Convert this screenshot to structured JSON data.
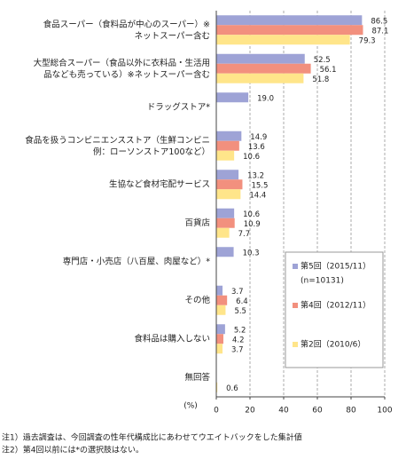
{
  "chart_data": {
    "type": "bar",
    "orientation": "horizontal",
    "categories": [
      "食品スーパー（食料品が中心のスーパー）※\nネットスーパー含む",
      "大型総合スーパー（食品以外に衣料品・生活用\n品なども売っている）※ネットスーパー含む",
      "ドラッグストア*",
      "食品を扱うコンビニエンスストア（生鮮コンビニ\n例：ローソンストア100など）",
      "生協など食材宅配サービス",
      "百貨店",
      "専門店・小売店（八百屋、肉屋など）*",
      "その他",
      "食料品は購入しない",
      "無回答"
    ],
    "series": [
      {
        "name": "第5回（2015/11）",
        "name_note": "(n=10131)",
        "color": "#9ea3d6",
        "values": [
          86.5,
          52.5,
          19.0,
          14.9,
          13.2,
          10.6,
          10.3,
          3.7,
          5.2,
          null
        ],
        "value_labels": [
          "86.5",
          "52.5",
          "19.0",
          "14.9",
          "13.2",
          "10.6",
          "10.3",
          "3.7",
          "5.2",
          null
        ]
      },
      {
        "name": "第4回（2012/11）",
        "color": "#f2907e",
        "values": [
          87.1,
          56.1,
          null,
          13.6,
          15.5,
          10.9,
          null,
          6.4,
          4.2,
          null
        ],
        "value_labels": [
          "87.1",
          "56.1",
          null,
          "13.6",
          "15.5",
          "10.9",
          null,
          "6.4",
          "4.2",
          null
        ]
      },
      {
        "name": "第2回（2010/6）",
        "color": "#ffe58a",
        "values": [
          79.3,
          51.8,
          null,
          10.6,
          14.4,
          7.7,
          null,
          5.5,
          3.7,
          0.6
        ],
        "value_labels": [
          "79.3",
          "51.8",
          null,
          "10.6",
          "14.4",
          "7.7",
          null,
          "5.5",
          "3.7",
          "0.6"
        ]
      }
    ],
    "x_axis_label": "(%)",
    "xlim": [
      0,
      100
    ],
    "xticks": [
      0,
      20,
      40,
      60,
      80,
      100
    ],
    "grid": true,
    "notes": [
      "注1）過去調査は、今回調査の性年代構成比にあわせてウエイトバックをした集計値",
      "注2）第4回以前には*の選択肢はない。"
    ]
  }
}
